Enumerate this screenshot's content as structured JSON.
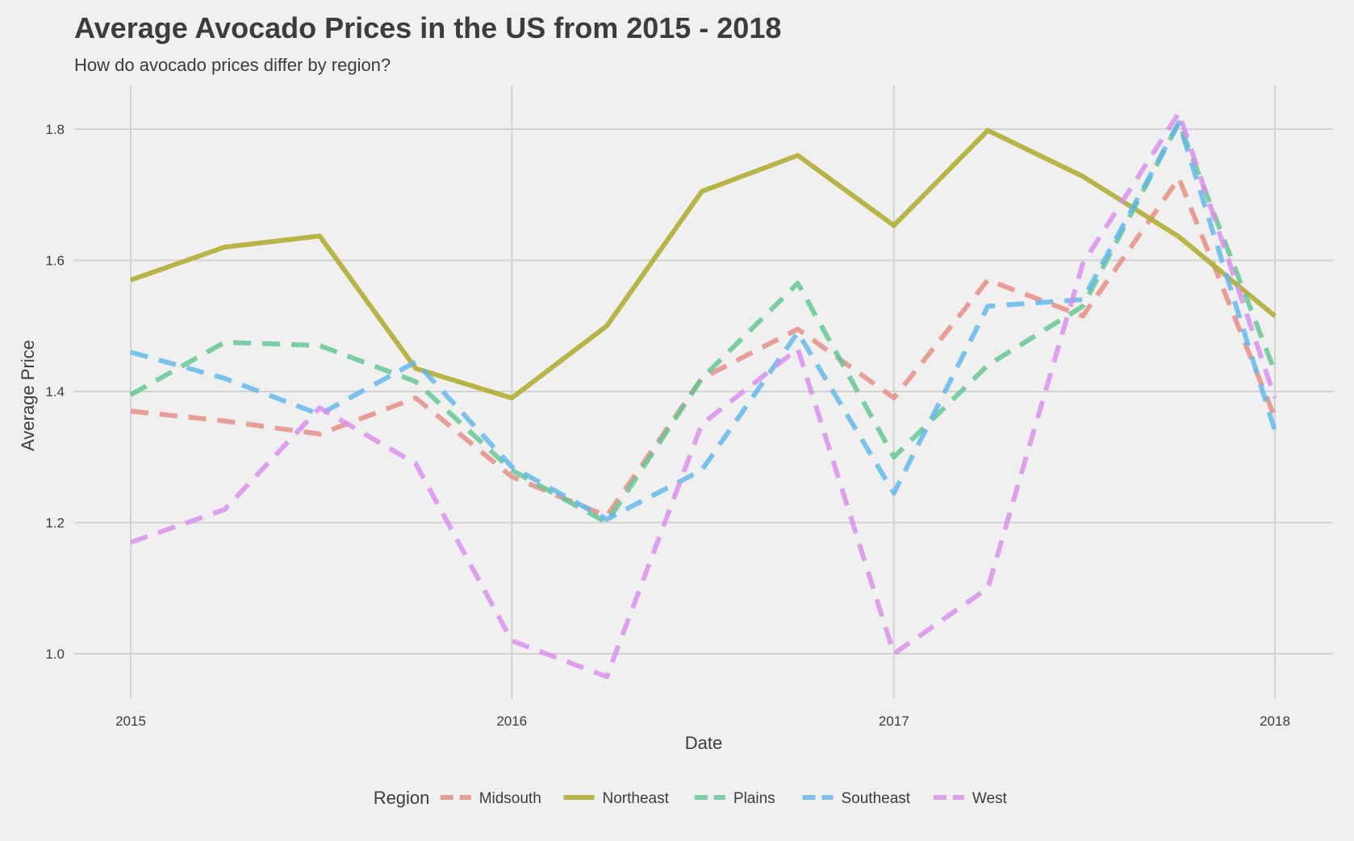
{
  "chart_data": {
    "type": "line",
    "title": "Average Avocado Prices in the US from 2015 - 2018",
    "subtitle": "How do avocado prices differ by region?",
    "xlabel": "Date",
    "ylabel": "Average Price",
    "x": [
      "2015-01-01",
      "2015-04-01",
      "2015-07-01",
      "2015-10-01",
      "2016-01-01",
      "2016-04-01",
      "2016-07-01",
      "2016-10-01",
      "2017-01-01",
      "2017-04-01",
      "2017-07-01",
      "2017-10-01",
      "2018-01-01"
    ],
    "xticks": [
      "2015",
      "2016",
      "2017",
      "2018"
    ],
    "yticks": [
      "1.0",
      "1.2",
      "1.4",
      "1.6",
      "1.8"
    ],
    "ylim": [
      0.93,
      1.87
    ],
    "grid": true,
    "legend": {
      "title": "Region",
      "position": "bottom"
    },
    "series": [
      {
        "name": "Midsouth",
        "color": "#e58b80",
        "dash": true,
        "values": [
          1.37,
          1.355,
          1.335,
          1.39,
          1.27,
          1.21,
          1.42,
          1.495,
          1.39,
          1.57,
          1.515,
          1.725,
          1.36
        ]
      },
      {
        "name": "Northeast",
        "color": "#b5b03c",
        "dash": false,
        "values": [
          1.57,
          1.62,
          1.637,
          1.435,
          1.39,
          1.5,
          1.705,
          1.76,
          1.653,
          1.798,
          1.728,
          1.636,
          1.515
        ]
      },
      {
        "name": "Plains",
        "color": "#5fc692",
        "dash": true,
        "values": [
          1.395,
          1.475,
          1.47,
          1.415,
          1.28,
          1.2,
          1.42,
          1.565,
          1.3,
          1.44,
          1.53,
          1.81,
          1.43
        ]
      },
      {
        "name": "Southeast",
        "color": "#5db7ec",
        "dash": true,
        "values": [
          1.46,
          1.42,
          1.365,
          1.445,
          1.285,
          1.205,
          1.28,
          1.49,
          1.245,
          1.53,
          1.54,
          1.81,
          1.34
        ]
      },
      {
        "name": "West",
        "color": "#d98ded",
        "dash": true,
        "values": [
          1.17,
          1.22,
          1.375,
          1.29,
          1.02,
          0.965,
          1.35,
          1.465,
          1.0,
          1.1,
          1.595,
          1.825,
          1.39
        ]
      }
    ]
  }
}
